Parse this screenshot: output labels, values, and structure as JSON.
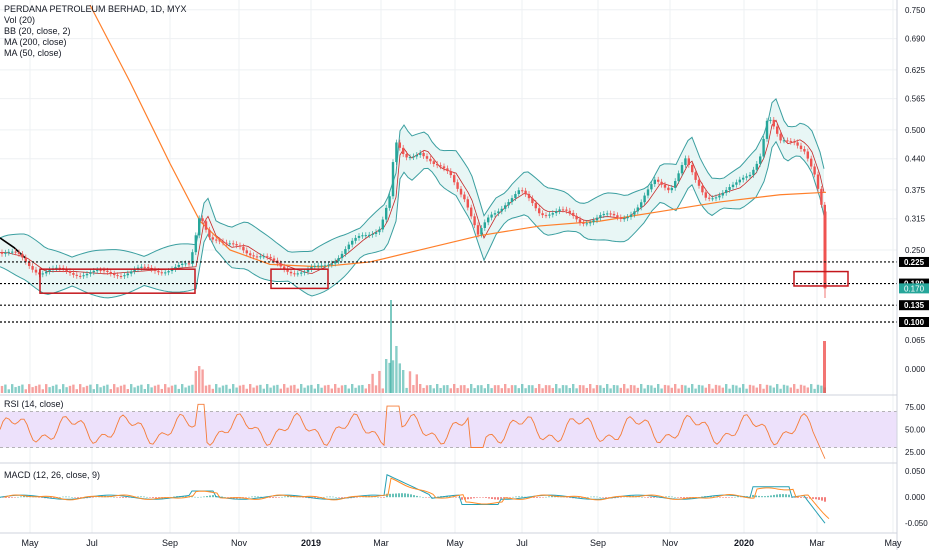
{
  "chart_data": {
    "type": "candlestick",
    "title": "PERDANA PETROLEUM BERHAD, 1D, MYX",
    "indicators": [
      "Vol (20)",
      "BB (20, close, 2)",
      "MA (200, close)",
      "MA (50, close)"
    ],
    "x_tick_labels": [
      "May",
      "Jul",
      "Sep",
      "Nov",
      "2019",
      "Mar",
      "May",
      "Jul",
      "Sep",
      "Nov",
      "2020",
      "Mar",
      "May"
    ],
    "price_axis_ticks": [
      "0.750",
      "0.690",
      "0.625",
      "0.565",
      "0.500",
      "0.440",
      "0.375",
      "0.315",
      "0.250",
      "0.065",
      "0.000"
    ],
    "price_ylim": [
      0.1,
      0.76
    ],
    "horizontal_levels": [
      {
        "value": 0.225,
        "label": "0.225"
      },
      {
        "value": 0.18,
        "label": "0.180"
      },
      {
        "value": 0.135,
        "label": "0.135"
      },
      {
        "value": 0.1,
        "label": "0.100"
      }
    ],
    "last_price": {
      "value": 0.17,
      "label": "0.170"
    },
    "price_path": [
      {
        "x": 0,
        "v": 0.245
      },
      {
        "x": 20,
        "v": 0.235
      },
      {
        "x": 40,
        "v": 0.205
      },
      {
        "x": 70,
        "v": 0.205
      },
      {
        "x": 100,
        "v": 0.2
      },
      {
        "x": 130,
        "v": 0.205
      },
      {
        "x": 160,
        "v": 0.21
      },
      {
        "x": 190,
        "v": 0.215
      },
      {
        "x": 200,
        "v": 0.33
      },
      {
        "x": 210,
        "v": 0.28
      },
      {
        "x": 225,
        "v": 0.255
      },
      {
        "x": 240,
        "v": 0.26
      },
      {
        "x": 255,
        "v": 0.24
      },
      {
        "x": 270,
        "v": 0.225
      },
      {
        "x": 290,
        "v": 0.21
      },
      {
        "x": 305,
        "v": 0.2
      },
      {
        "x": 320,
        "v": 0.215
      },
      {
        "x": 340,
        "v": 0.24
      },
      {
        "x": 360,
        "v": 0.275
      },
      {
        "x": 380,
        "v": 0.3
      },
      {
        "x": 390,
        "v": 0.36
      },
      {
        "x": 395,
        "v": 0.47
      },
      {
        "x": 405,
        "v": 0.44
      },
      {
        "x": 420,
        "v": 0.46
      },
      {
        "x": 435,
        "v": 0.42
      },
      {
        "x": 450,
        "v": 0.41
      },
      {
        "x": 465,
        "v": 0.36
      },
      {
        "x": 478,
        "v": 0.275
      },
      {
        "x": 490,
        "v": 0.32
      },
      {
        "x": 505,
        "v": 0.35
      },
      {
        "x": 520,
        "v": 0.37
      },
      {
        "x": 540,
        "v": 0.33
      },
      {
        "x": 560,
        "v": 0.33
      },
      {
        "x": 580,
        "v": 0.31
      },
      {
        "x": 600,
        "v": 0.32
      },
      {
        "x": 620,
        "v": 0.315
      },
      {
        "x": 640,
        "v": 0.345
      },
      {
        "x": 655,
        "v": 0.39
      },
      {
        "x": 670,
        "v": 0.38
      },
      {
        "x": 685,
        "v": 0.44
      },
      {
        "x": 695,
        "v": 0.39
      },
      {
        "x": 705,
        "v": 0.36
      },
      {
        "x": 720,
        "v": 0.37
      },
      {
        "x": 735,
        "v": 0.38
      },
      {
        "x": 750,
        "v": 0.41
      },
      {
        "x": 760,
        "v": 0.45
      },
      {
        "x": 768,
        "v": 0.53
      },
      {
        "x": 780,
        "v": 0.47
      },
      {
        "x": 795,
        "v": 0.48
      },
      {
        "x": 805,
        "v": 0.46
      },
      {
        "x": 815,
        "v": 0.4
      },
      {
        "x": 822,
        "v": 0.33
      },
      {
        "x": 826,
        "v": 0.17
      }
    ],
    "ma200_path": [
      {
        "x": 90,
        "v": 0.76
      },
      {
        "x": 130,
        "v": 0.6
      },
      {
        "x": 170,
        "v": 0.43
      },
      {
        "x": 200,
        "v": 0.31
      },
      {
        "x": 230,
        "v": 0.25
      },
      {
        "x": 270,
        "v": 0.22
      },
      {
        "x": 320,
        "v": 0.215
      },
      {
        "x": 370,
        "v": 0.225
      },
      {
        "x": 420,
        "v": 0.25
      },
      {
        "x": 480,
        "v": 0.28
      },
      {
        "x": 540,
        "v": 0.3
      },
      {
        "x": 600,
        "v": 0.31
      },
      {
        "x": 660,
        "v": 0.33
      },
      {
        "x": 720,
        "v": 0.35
      },
      {
        "x": 780,
        "v": 0.365
      },
      {
        "x": 826,
        "v": 0.37
      }
    ],
    "boxes": [
      {
        "x1": 40,
        "x2": 195,
        "v_top": 0.21,
        "v_bottom": 0.16
      },
      {
        "x1": 271,
        "x2": 328,
        "v_top": 0.21,
        "v_bottom": 0.17
      },
      {
        "x1": 794,
        "x2": 848,
        "v_top": 0.205,
        "v_bottom": 0.175
      }
    ],
    "volume_axis_ticks": [
      "0.065",
      "0.000"
    ],
    "rsi": {
      "label": "RSI (14, close)",
      "ticks": [
        "75.00",
        "50.00",
        "25.00"
      ],
      "upper": 70,
      "lower": 30,
      "ylim": [
        15,
        85
      ]
    },
    "macd": {
      "label": "MACD (12, 26, close, 9)",
      "ticks": [
        "0.050",
        "0.000",
        "-0.050"
      ],
      "ylim": [
        -0.065,
        0.06
      ]
    },
    "colors": {
      "up": "#26a69a",
      "down": "#ef5350",
      "ma200": "#ff7f2a",
      "ma50": "#000000",
      "bb_fill": "#e8f6f5",
      "bb_line": "#3b9fa0",
      "rsi_line": "#f57c38",
      "rsi_band": "#ede1fb",
      "macd_line": "#26a0b4",
      "signal_line": "#ff8c28",
      "box": "#c4161c"
    }
  }
}
